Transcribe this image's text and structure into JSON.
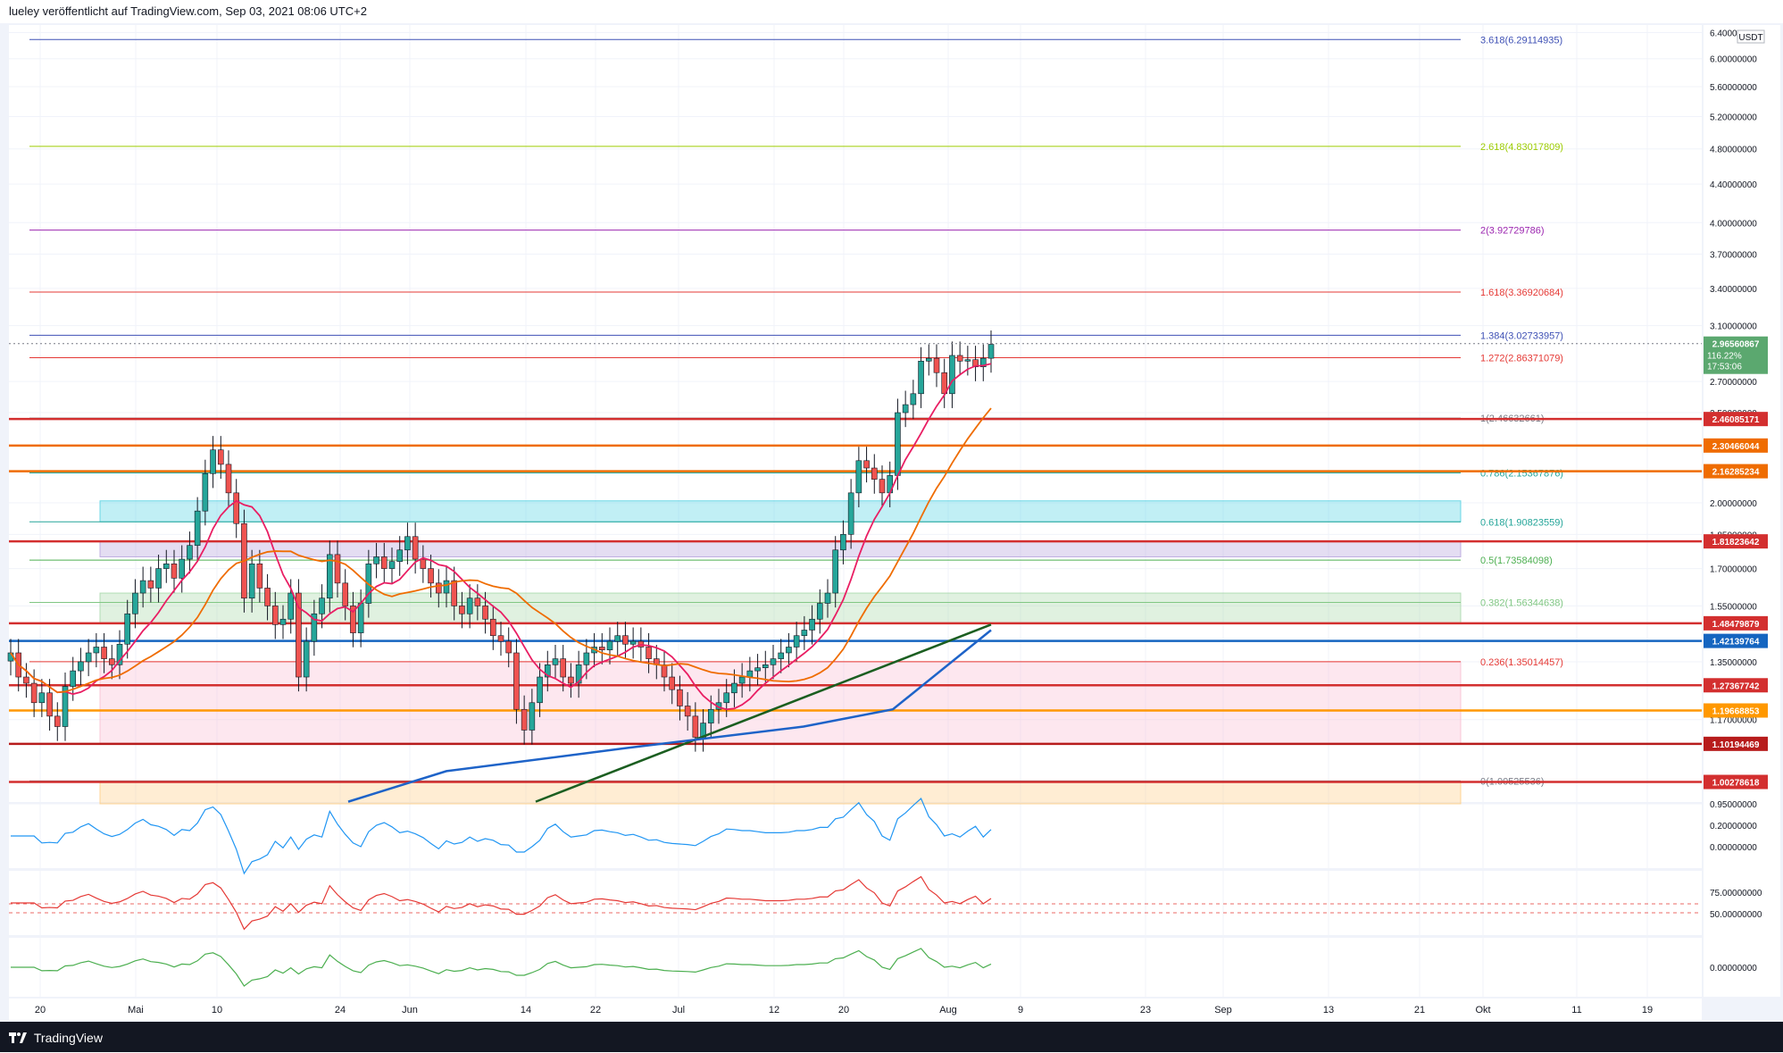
{
  "header": {
    "caption": "lueley veröffentlicht auf TradingView.com, Sep 03, 2021 08:06 UTC+2"
  },
  "footer": {
    "brand": "TradingView"
  },
  "chart_data": {
    "type": "candlestick",
    "title": "",
    "currency_badge": "USDT",
    "price_axis": {
      "scale": "log",
      "ticks": [
        "6.40000000",
        "6.00000000",
        "5.60000000",
        "5.20000000",
        "4.80000000",
        "4.40000000",
        "4.00000000",
        "3.70000000",
        "3.40000000",
        "3.10000000",
        "2.70000000",
        "2.50000000",
        "2.00000000",
        "1.85000000",
        "1.70000000",
        "1.55000000",
        "1.35000000",
        "1.17000000",
        "0.95000000"
      ],
      "range": [
        0.95,
        6.45
      ]
    },
    "time_axis": {
      "ticks": [
        "20",
        "Mai",
        "10",
        "24",
        "Jun",
        "14",
        "22",
        "Jul",
        "12",
        "20",
        "Aug",
        "9",
        "23",
        "Sep",
        "13",
        "21",
        "Okt",
        "11",
        "19"
      ]
    },
    "last_price": {
      "price": "2.96560867",
      "change": "116.22%",
      "countdown": "17:53:06"
    },
    "fib_levels": [
      {
        "label": "3.618(6.29114935)",
        "value": 6.29114935,
        "color": "#3f51b5"
      },
      {
        "label": "2.618(4.83017809)",
        "value": 4.83017809,
        "color": "#9ccc00"
      },
      {
        "label": "2(3.92729786)",
        "value": 3.92729786,
        "color": "#9c27b0"
      },
      {
        "label": "1.618(3.36920684)",
        "value": 3.36920684,
        "color": "#e53935"
      },
      {
        "label": "1.384(3.02733957)",
        "value": 3.02733957,
        "color": "#3f51b5"
      },
      {
        "label": "1.272(2.86371079)",
        "value": 2.86371079,
        "color": "#e53935"
      },
      {
        "label": "1(2.46632661)",
        "value": 2.46632661,
        "color": "#787b86"
      },
      {
        "label": "0.786(2.15367876)",
        "value": 2.15367876,
        "color": "#26a69a"
      },
      {
        "label": "0.618(1.90823559)",
        "value": 1.90823559,
        "color": "#26a69a"
      },
      {
        "label": "0.5(1.73584098)",
        "value": 1.73584098,
        "color": "#4caf50"
      },
      {
        "label": "0.382(1.56344638)",
        "value": 1.56344638,
        "color": "#81c784"
      },
      {
        "label": "0.236(1.35014457)",
        "value": 1.35014457,
        "color": "#e53935"
      },
      {
        "label": "0(1.00525536)",
        "value": 1.00525536,
        "color": "#787b86"
      }
    ],
    "horizontal_levels": [
      {
        "label": "2.46085171",
        "value": 2.46085171,
        "color": "#d32f2f"
      },
      {
        "label": "2.30466044",
        "value": 2.30466044,
        "color": "#ef6c00"
      },
      {
        "label": "2.16285234",
        "value": 2.16285234,
        "color": "#ef6c00"
      },
      {
        "label": "1.81823642",
        "value": 1.81823642,
        "color": "#d32f2f"
      },
      {
        "label": "1.48479879",
        "value": 1.48479879,
        "color": "#d32f2f"
      },
      {
        "label": "1.42139764",
        "value": 1.42139764,
        "color": "#1565c0"
      },
      {
        "label": "1.27367742",
        "value": 1.27367742,
        "color": "#d32f2f"
      },
      {
        "label": "1.19668853",
        "value": 1.19668853,
        "color": "#ff9800"
      },
      {
        "label": "1.10194469",
        "value": 1.10194469,
        "color": "#b71c1c"
      },
      {
        "label": "1.00278618",
        "value": 1.00278618,
        "color": "#d32f2f"
      }
    ],
    "zones": [
      {
        "from": 1.90823559,
        "to": 2.01,
        "color": "#4dd0e1"
      },
      {
        "from": 1.75,
        "to": 1.81823642,
        "color": "#b39ddb"
      },
      {
        "from": 1.48479879,
        "to": 1.6,
        "color": "#a5d6a7"
      },
      {
        "from": 1.10194469,
        "to": 1.35014457,
        "color": "#f8bbd0"
      },
      {
        "from": 0.95,
        "to": 1.00278618,
        "color": "#ffcc80"
      }
    ],
    "oscillators": {
      "macd_ticks": [
        "0.20000000",
        "0.00000000"
      ],
      "rsi_ticks": [
        "75.00000000",
        "50.00000000"
      ],
      "hist_ticks": [
        "0.00000000"
      ]
    },
    "colors": {
      "up": "#26a69a",
      "down": "#ef5350",
      "ema_fast": "#e91e63",
      "ema_mid": "#ef6c00",
      "sma_slow": "#1b5e20",
      "ema_slow": "#1e63c8"
    }
  }
}
